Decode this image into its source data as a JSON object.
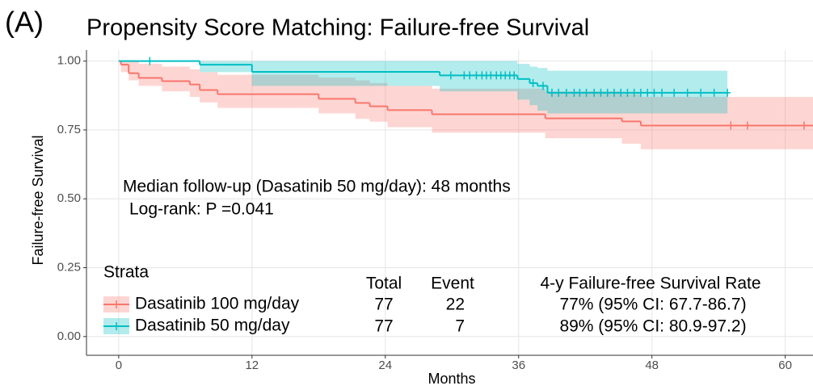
{
  "panel_label": "(A)",
  "chart_data": {
    "type": "survival",
    "title": "Propensity Score Matching: Failure-free Survival",
    "x_label": "Months",
    "y_label": "Failure-free Survival",
    "xlim": [
      -2.9,
      62.5
    ],
    "ylim": [
      -0.068,
      1.04
    ],
    "xticks": [
      0,
      12,
      24,
      36,
      48,
      60
    ],
    "yticks": [
      {
        "value": 0,
        "label": "0.00"
      },
      {
        "value": 0.25,
        "label": "0.25"
      },
      {
        "value": 0.5,
        "label": "0.50"
      },
      {
        "value": 0.75,
        "label": "0.75"
      },
      {
        "value": 1,
        "label": "1.00"
      }
    ],
    "grid": true,
    "legend_title": "Strata",
    "annotations": [
      "Median follow-up (Dasatinib 50 mg/day): 48 months",
      "Log-rank:  P =0.041"
    ],
    "series": [
      {
        "name": "Dasatinib 100 mg/day",
        "color": "#F8766D",
        "x": [
          0,
          0.2,
          0.9,
          1.8,
          3.9,
          6.4,
          7.3,
          8.9,
          18,
          21.3,
          22.6,
          24.2,
          28.2,
          38.4,
          45.3,
          47,
          62.5
        ],
        "values": [
          1,
          0.987,
          0.956,
          0.939,
          0.927,
          0.915,
          0.895,
          0.88,
          0.863,
          0.848,
          0.836,
          0.822,
          0.807,
          0.792,
          0.781,
          0.766,
          0.766
        ],
        "lower": [
          1,
          0.96,
          0.93,
          0.91,
          0.89,
          0.87,
          0.85,
          0.83,
          0.81,
          0.79,
          0.78,
          0.76,
          0.74,
          0.72,
          0.7,
          0.68,
          0.68
        ],
        "upper": [
          1,
          1,
          1,
          0.99,
          0.98,
          0.97,
          0.96,
          0.95,
          0.94,
          0.93,
          0.92,
          0.91,
          0.9,
          0.89,
          0.88,
          0.87,
          0.87
        ],
        "censored": [
          55.1,
          56.6,
          61.7
        ]
      },
      {
        "name": "Dasatinib 50 mg/day",
        "color": "#00BFC4",
        "x": [
          0,
          7.3,
          12,
          28.9,
          35.9,
          37,
          37.7,
          38.6,
          54.8
        ],
        "values": [
          1,
          0.987,
          0.961,
          0.948,
          0.935,
          0.92,
          0.91,
          0.885,
          0.885
        ],
        "lower": [
          1,
          0.96,
          0.91,
          0.89,
          0.86,
          0.84,
          0.82,
          0.81,
          0.81
        ],
        "upper": [
          1,
          1,
          1,
          1,
          0.99,
          0.98,
          0.975,
          0.965,
          0.965
        ],
        "censored": [
          2.8,
          29.9,
          31.1,
          31.6,
          32.2,
          32.7,
          33.1,
          33.5,
          34,
          34.4,
          34.8,
          35.2,
          35.6,
          37.3,
          38.2,
          39,
          39.6,
          40.3,
          41,
          41.5,
          42.1,
          42.8,
          43.4,
          44,
          44.6,
          45.2,
          45.8,
          46.4,
          47,
          47.6,
          48.2,
          48.9,
          50,
          51.2,
          52.4,
          53.6,
          54.8
        ]
      }
    ],
    "table": {
      "columns": [
        "Total",
        "Event",
        "4-y Failure-free Survival Rate"
      ],
      "rows": [
        [
          77,
          22,
          "77% (95% CI: 67.7-86.7)"
        ],
        [
          77,
          7,
          "89% (95% CI: 80.9-97.2)"
        ]
      ]
    }
  }
}
